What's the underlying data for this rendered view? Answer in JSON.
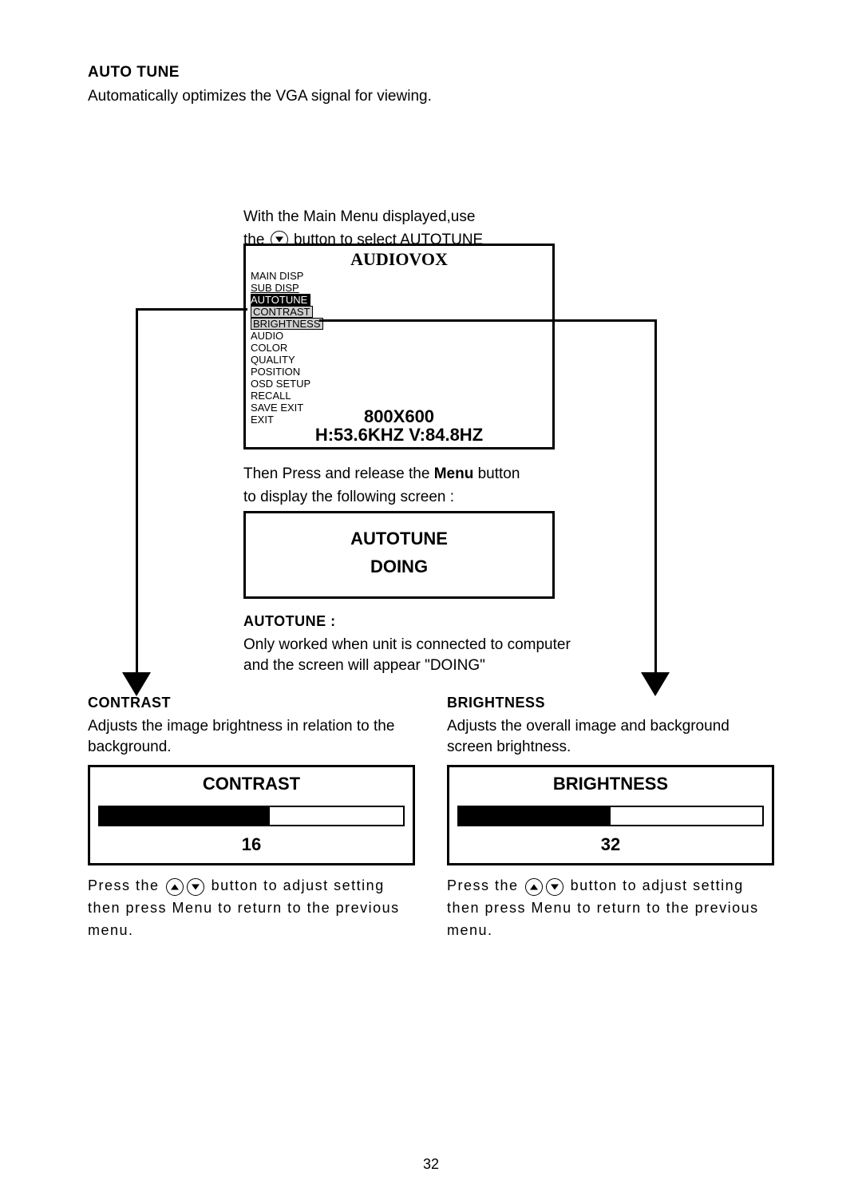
{
  "section": {
    "title": "AUTO TUNE",
    "desc": "Automatically optimizes the VGA signal for viewing."
  },
  "mainmenu_instr": {
    "line1": "With the Main Menu displayed,use",
    "line2a": "the",
    "line2b": "button to select AUTOTUNE"
  },
  "osd_main": {
    "brand": "AUDIOVOX",
    "items": [
      {
        "label": "MAIN DISP",
        "style": "plain"
      },
      {
        "label": "SUB DISP",
        "style": "underline"
      },
      {
        "label": "AUTOTUNE",
        "style": "selected"
      },
      {
        "label": "CONTRAST",
        "style": "greybox"
      },
      {
        "label": "BRIGHTNESS",
        "style": "greybox"
      },
      {
        "label": "AUDIO",
        "style": "plain"
      },
      {
        "label": "COLOR",
        "style": "plain"
      },
      {
        "label": "QUALITY",
        "style": "plain"
      },
      {
        "label": "POSITION",
        "style": "plain"
      },
      {
        "label": "OSD SETUP",
        "style": "plain"
      },
      {
        "label": "RECALL",
        "style": "plain"
      },
      {
        "label": "SAVE EXIT",
        "style": "plain"
      },
      {
        "label": "EXIT",
        "style": "plain"
      }
    ],
    "res_line1": "800X600",
    "res_line2": "H:53.6KHZ V:84.8HZ"
  },
  "thenpress": {
    "line1a": "Then Press and release the ",
    "line1b": "Menu",
    "line1c": " button",
    "line2": "to display the following screen :"
  },
  "osd_doing": {
    "line1": "AUTOTUNE",
    "line2": "DOING"
  },
  "autotune_note": {
    "title": "AUTOTUNE :",
    "line1": "Only worked when unit is connected to computer",
    "line2": "and the screen will appear \"DOING\""
  },
  "contrast": {
    "title": "CONTRAST",
    "desc": "Adjusts the image brightness in relation to the background.",
    "box_title": "CONTRAST",
    "value": "16",
    "fill_percent": 56,
    "press_a": "Press the",
    "press_b": "button to adjust setting then press Menu to return to the previous menu."
  },
  "brightness": {
    "title": "BRIGHTNESS",
    "desc": "Adjusts the overall image and background screen brightness.",
    "box_title": "BRIGHTNESS",
    "value": "32",
    "fill_percent": 50,
    "press_a": "Press the",
    "press_b": "button to adjust setting then press Menu to return to the previous menu."
  },
  "page_number": "32",
  "colors": {
    "black": "#000000",
    "white": "#ffffff",
    "grey": "#cfcfcf"
  }
}
